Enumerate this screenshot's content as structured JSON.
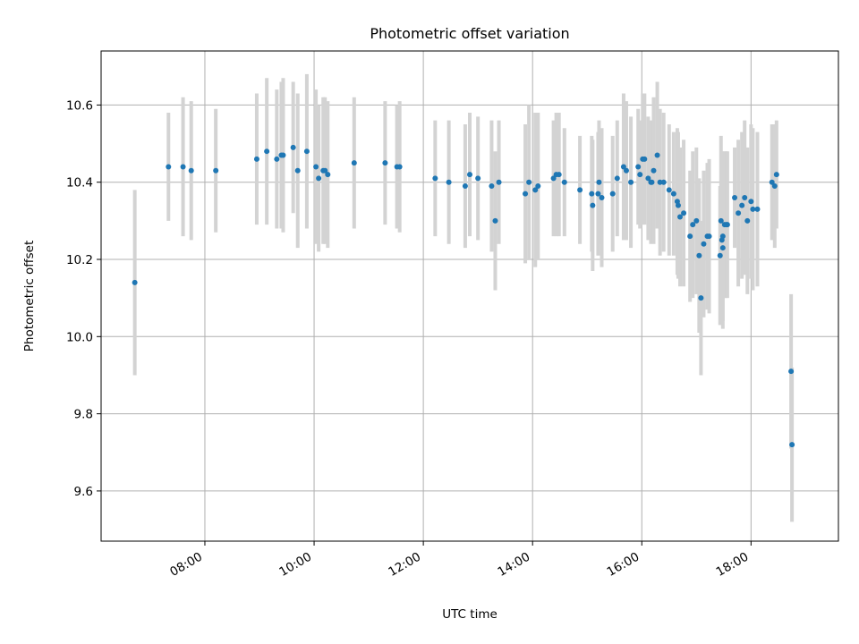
{
  "chart_data": {
    "type": "scatter",
    "title": "Photometric offset variation",
    "xlabel": "UTC time",
    "ylabel": "Photometric offset",
    "x_ticks": [
      "08:00",
      "10:00",
      "12:00",
      "14:00",
      "16:00",
      "18:00"
    ],
    "y_ticks": [
      "9.6",
      "9.8",
      "10.0",
      "10.2",
      "10.4",
      "10.6"
    ],
    "xlim": [
      "06:06",
      "19:36"
    ],
    "ylim": [
      9.47,
      10.74
    ],
    "grid": true,
    "colors": {
      "marker": "#1f77b4",
      "errorbar": "#d3d3d3",
      "grid": "#b0b0b0"
    },
    "series": [
      {
        "x": [
          "06:43",
          "07:20",
          "07:36",
          "07:45",
          "08:12",
          "08:57",
          "09:08",
          "09:19",
          "09:24",
          "09:26",
          "09:37",
          "09:42",
          "09:52",
          "10:02",
          "10:05",
          "10:10",
          "10:12",
          "10:15",
          "10:44",
          "11:18",
          "11:31",
          "11:34",
          "12:13",
          "12:28",
          "12:46",
          "12:51",
          "13:00",
          "13:15",
          "13:19",
          "13:23",
          "13:52",
          "13:56",
          "14:03",
          "14:06",
          "14:23",
          "14:26",
          "14:29",
          "14:35",
          "14:52",
          "15:05",
          "15:06",
          "15:12",
          "15:13",
          "15:16",
          "15:28",
          "15:33",
          "15:40",
          "15:43",
          "15:48",
          "15:56",
          "15:58",
          "16:01",
          "16:03",
          "16:07",
          "16:10",
          "16:11",
          "16:13",
          "16:17",
          "16:20",
          "16:24",
          "16:30",
          "16:35",
          "16:39",
          "16:40",
          "16:42",
          "16:46",
          "16:53",
          "16:56",
          "17:00",
          "17:03",
          "17:05",
          "17:08",
          "17:12",
          "17:14",
          "17:26",
          "17:27",
          "17:28",
          "17:29",
          "17:29",
          "17:31",
          "17:33",
          "17:34",
          "17:42",
          "17:46",
          "17:50",
          "17:53",
          "17:56",
          "18:00",
          "18:02",
          "18:07",
          "18:23",
          "18:26",
          "18:28",
          "18:44",
          "18:45"
        ],
        "y": [
          10.14,
          10.44,
          10.44,
          10.43,
          10.43,
          10.46,
          10.48,
          10.46,
          10.47,
          10.47,
          10.49,
          10.43,
          10.48,
          10.44,
          10.41,
          10.43,
          10.43,
          10.42,
          10.45,
          10.45,
          10.44,
          10.44,
          10.41,
          10.4,
          10.39,
          10.42,
          10.41,
          10.39,
          10.3,
          10.4,
          10.37,
          10.4,
          10.38,
          10.39,
          10.41,
          10.42,
          10.42,
          10.4,
          10.38,
          10.37,
          10.34,
          10.37,
          10.4,
          10.36,
          10.37,
          10.41,
          10.44,
          10.43,
          10.4,
          10.44,
          10.42,
          10.46,
          10.46,
          10.41,
          10.4,
          10.4,
          10.43,
          10.47,
          10.4,
          10.4,
          10.38,
          10.37,
          10.35,
          10.34,
          10.31,
          10.32,
          10.26,
          10.29,
          10.3,
          10.21,
          10.1,
          10.24,
          10.26,
          10.26,
          10.21,
          10.3,
          10.25,
          10.23,
          10.26,
          10.29,
          10.29,
          10.29,
          10.36,
          10.32,
          10.34,
          10.36,
          10.3,
          10.35,
          10.33,
          10.33,
          10.4,
          10.39,
          10.42,
          9.91,
          9.72
        ],
        "err": [
          0.24,
          0.14,
          0.18,
          0.18,
          0.16,
          0.17,
          0.19,
          0.18,
          0.19,
          0.2,
          0.17,
          0.2,
          0.2,
          0.2,
          0.19,
          0.19,
          0.19,
          0.19,
          0.17,
          0.16,
          0.16,
          0.17,
          0.15,
          0.16,
          0.16,
          0.16,
          0.16,
          0.17,
          0.18,
          0.16,
          0.18,
          0.2,
          0.2,
          0.19,
          0.15,
          0.16,
          0.16,
          0.14,
          0.14,
          0.15,
          0.17,
          0.16,
          0.16,
          0.18,
          0.15,
          0.15,
          0.19,
          0.18,
          0.17,
          0.15,
          0.14,
          0.17,
          0.17,
          0.16,
          0.16,
          0.15,
          0.19,
          0.19,
          0.19,
          0.18,
          0.17,
          0.16,
          0.19,
          0.19,
          0.18,
          0.19,
          0.17,
          0.19,
          0.19,
          0.2,
          0.2,
          0.19,
          0.19,
          0.2,
          0.18,
          0.22,
          0.21,
          0.21,
          0.22,
          0.19,
          0.19,
          0.19,
          0.13,
          0.19,
          0.19,
          0.2,
          0.19,
          0.2,
          0.21,
          0.2,
          0.15,
          0.16,
          0.14,
          0.2,
          0.2
        ]
      }
    ]
  }
}
